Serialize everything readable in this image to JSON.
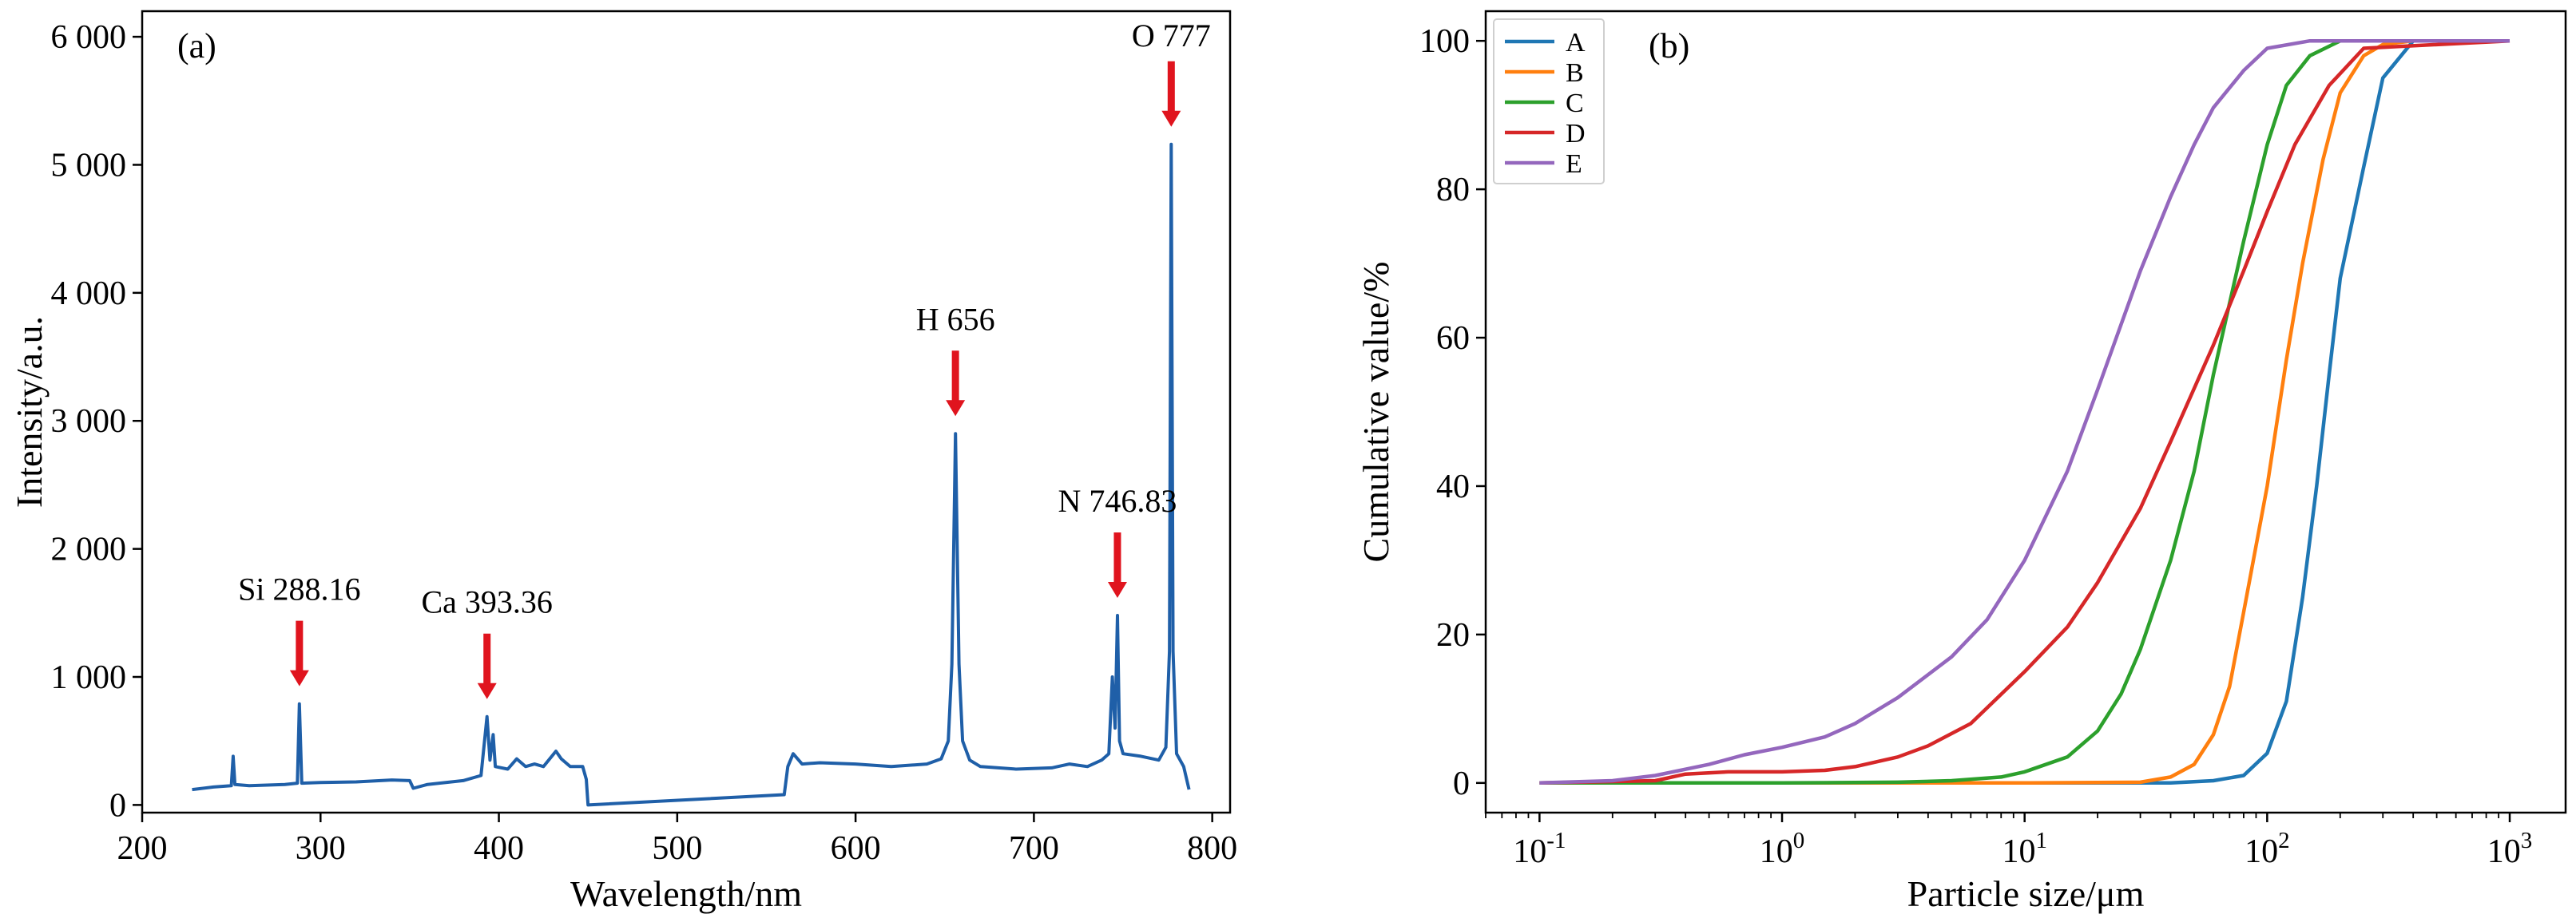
{
  "colors": {
    "spectrum": "#1f5fa8",
    "arrow": "#e0141e",
    "series": [
      "#1f77b4",
      "#ff7f0e",
      "#2ca02c",
      "#d62728",
      "#9467bd"
    ]
  },
  "chart_data": [
    {
      "type": "line",
      "panel_label": "(a)",
      "xlabel": "Wavelength/nm",
      "ylabel": "Intensity/a.u.",
      "xlim": [
        200,
        810
      ],
      "ylim": [
        -60,
        6200
      ],
      "xticks": [
        200,
        300,
        400,
        500,
        600,
        700,
        800
      ],
      "xtick_labels": [
        "200",
        "300",
        "400",
        "500",
        "600",
        "700",
        "800"
      ],
      "yticks": [
        0,
        1000,
        2000,
        3000,
        4000,
        5000,
        6000
      ],
      "ytick_labels": [
        "0",
        "1 000",
        "2 000",
        "3 000",
        "4 000",
        "5 000",
        "6 000"
      ],
      "grid": false,
      "series": [
        {
          "x": [
            228,
            240,
            250,
            251,
            252,
            260,
            280,
            287,
            288.16,
            289.5,
            300,
            320,
            340,
            350,
            352,
            360,
            380,
            390,
            393.36,
            395,
            396.8,
            398,
            405,
            410,
            415,
            420,
            425,
            432,
            435,
            440,
            447,
            449,
            450,
            560,
            562,
            565,
            570,
            580,
            600,
            620,
            640,
            648,
            652,
            654,
            656,
            658,
            660,
            664,
            670,
            690,
            710,
            720,
            730,
            738,
            742,
            744,
            745.5,
            746.83,
            748,
            750,
            760,
            770,
            774,
            776,
            777,
            778,
            780,
            784,
            787
          ],
          "y": [
            120,
            140,
            150,
            380,
            160,
            150,
            160,
            170,
            790,
            170,
            175,
            180,
            195,
            190,
            130,
            160,
            190,
            230,
            690,
            350,
            550,
            300,
            280,
            360,
            300,
            320,
            300,
            420,
            360,
            300,
            300,
            200,
            0,
            80,
            300,
            400,
            320,
            330,
            320,
            300,
            320,
            360,
            500,
            1100,
            2900,
            1100,
            500,
            350,
            300,
            280,
            290,
            320,
            300,
            350,
            400,
            1000,
            600,
            1480,
            500,
            400,
            380,
            350,
            450,
            1200,
            5160,
            1200,
            400,
            300,
            120
          ]
        }
      ],
      "annotations": [
        {
          "text": "Si 288.16",
          "x": 288.16,
          "y": 790
        },
        {
          "text": "Ca 393.36",
          "x": 393.36,
          "y": 690
        },
        {
          "text": "H 656",
          "x": 656,
          "y": 2900
        },
        {
          "text": "N 746.83",
          "x": 746.83,
          "y": 1480
        },
        {
          "text": "O 777",
          "x": 777,
          "y": 5160
        }
      ]
    },
    {
      "type": "line",
      "panel_label": "(b)",
      "xlabel": "Particle size/μm",
      "ylabel": "Cumulative value/%",
      "xscale": "log",
      "xlim": [
        0.06,
        1700
      ],
      "ylim": [
        -4,
        104
      ],
      "xticks": [
        0.1,
        1,
        10,
        100,
        1000
      ],
      "xtick_labels": [
        {
          "base": "10",
          "exp": "-1"
        },
        {
          "base": "10",
          "exp": "0"
        },
        {
          "base": "10",
          "exp": "1"
        },
        {
          "base": "10",
          "exp": "2"
        },
        {
          "base": "10",
          "exp": "3"
        }
      ],
      "yticks": [
        0,
        20,
        40,
        60,
        80,
        100
      ],
      "ytick_labels": [
        "0",
        "20",
        "40",
        "60",
        "80",
        "100"
      ],
      "legend_position": "top-left",
      "grid": false,
      "series": [
        {
          "name": "A",
          "x": [
            0.1,
            1,
            10,
            40,
            60,
            80,
            100,
            120,
            140,
            160,
            180,
            200,
            250,
            300,
            400,
            500,
            1000
          ],
          "y": [
            0,
            0,
            0,
            0,
            0.3,
            1,
            4,
            11,
            25,
            40,
            55,
            68,
            83,
            95,
            100,
            100,
            100
          ]
        },
        {
          "name": "B",
          "x": [
            0.1,
            1,
            10,
            30,
            40,
            50,
            60,
            70,
            80,
            100,
            120,
            140,
            170,
            200,
            250,
            300,
            400,
            1000
          ],
          "y": [
            0,
            0,
            0,
            0.1,
            0.8,
            2.5,
            6.5,
            13,
            23,
            40,
            57,
            70,
            84,
            93,
            98,
            99.5,
            100,
            100
          ]
        },
        {
          "name": "C",
          "x": [
            0.1,
            1,
            3,
            5,
            8,
            10,
            15,
            20,
            25,
            30,
            40,
            50,
            60,
            80,
            100,
            120,
            150,
            200,
            1000
          ],
          "y": [
            0,
            0,
            0.1,
            0.3,
            0.8,
            1.5,
            3.5,
            7,
            12,
            18,
            30,
            42,
            55,
            73,
            86,
            94,
            98,
            100,
            100
          ]
        },
        {
          "name": "D",
          "x": [
            0.1,
            0.3,
            0.4,
            0.6,
            1,
            1.5,
            2,
            3,
            4,
            6,
            10,
            15,
            20,
            30,
            40,
            60,
            80,
            100,
            130,
            180,
            250,
            1000
          ],
          "y": [
            0,
            0.3,
            1.2,
            1.5,
            1.5,
            1.7,
            2.2,
            3.5,
            5,
            8,
            15,
            21,
            27,
            37,
            46,
            59,
            69,
            77,
            86,
            94,
            99,
            100
          ]
        },
        {
          "name": "E",
          "x": [
            0.1,
            0.2,
            0.3,
            0.5,
            0.7,
            1,
            1.5,
            2,
            3,
            5,
            7,
            10,
            15,
            20,
            30,
            40,
            50,
            60,
            80,
            100,
            150,
            1000
          ],
          "y": [
            0,
            0.3,
            1,
            2.5,
            3.8,
            4.8,
            6.2,
            8,
            11.5,
            17,
            22,
            30,
            42,
            53,
            69,
            79,
            86,
            91,
            96,
            99,
            100,
            100
          ]
        }
      ]
    }
  ]
}
